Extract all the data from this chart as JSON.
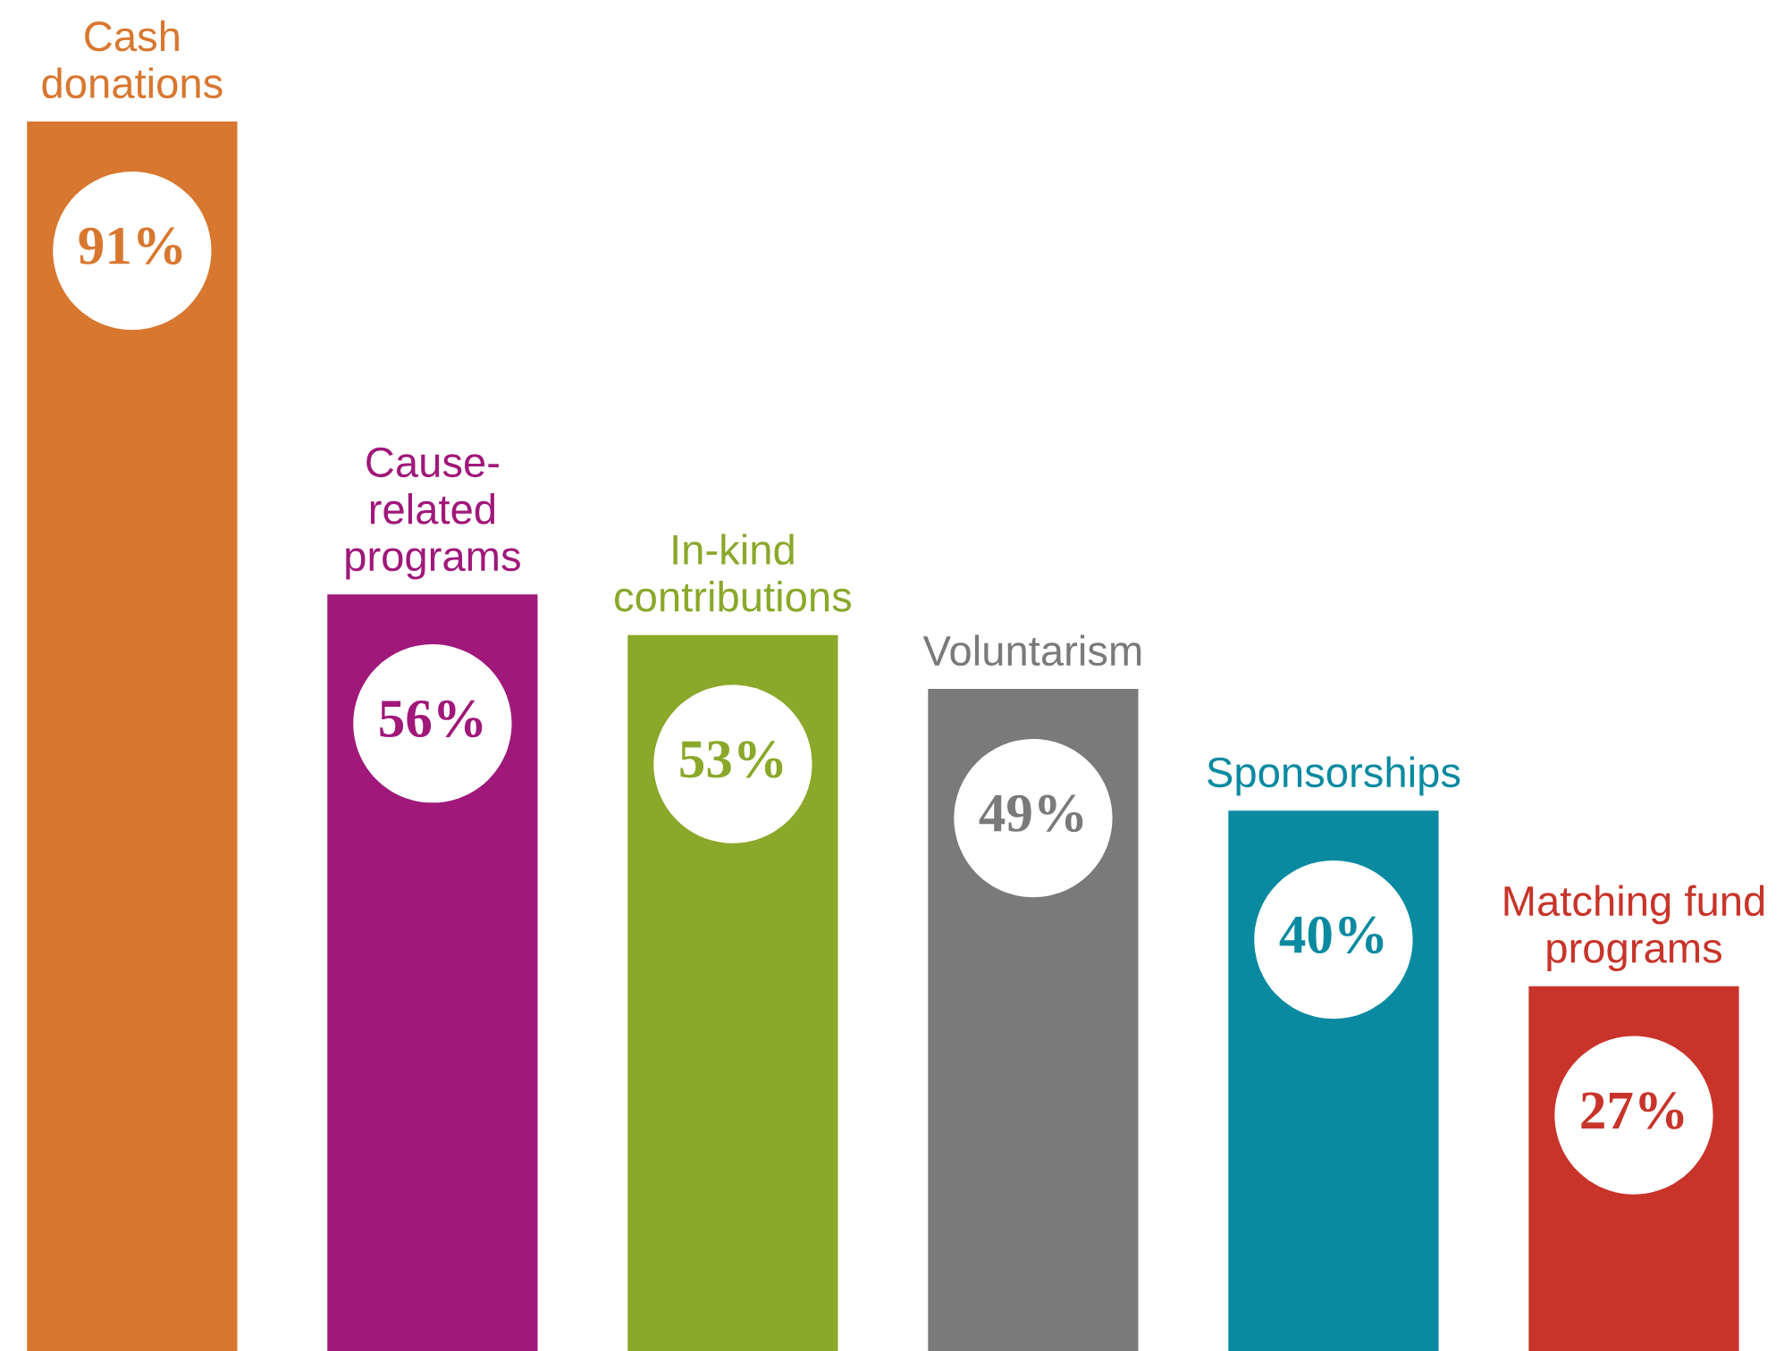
{
  "chart_data": {
    "type": "bar",
    "categories": [
      "Cash\ndonations",
      "Cause-\nrelated\nprograms",
      "In-kind\ncontributions",
      "Voluntarism",
      "Sponsorships",
      "Matching fund\nprograms"
    ],
    "values": [
      91,
      56,
      53,
      49,
      40,
      27
    ],
    "value_labels": [
      "91%",
      "56%",
      "53%",
      "49%",
      "40%",
      "27%"
    ],
    "colors": [
      "#d8772f",
      "#a0187a",
      "#8aa82a",
      "#7a7a7a",
      "#0a8aa0",
      "#c8342a"
    ],
    "ylim": [
      0,
      100
    ]
  }
}
